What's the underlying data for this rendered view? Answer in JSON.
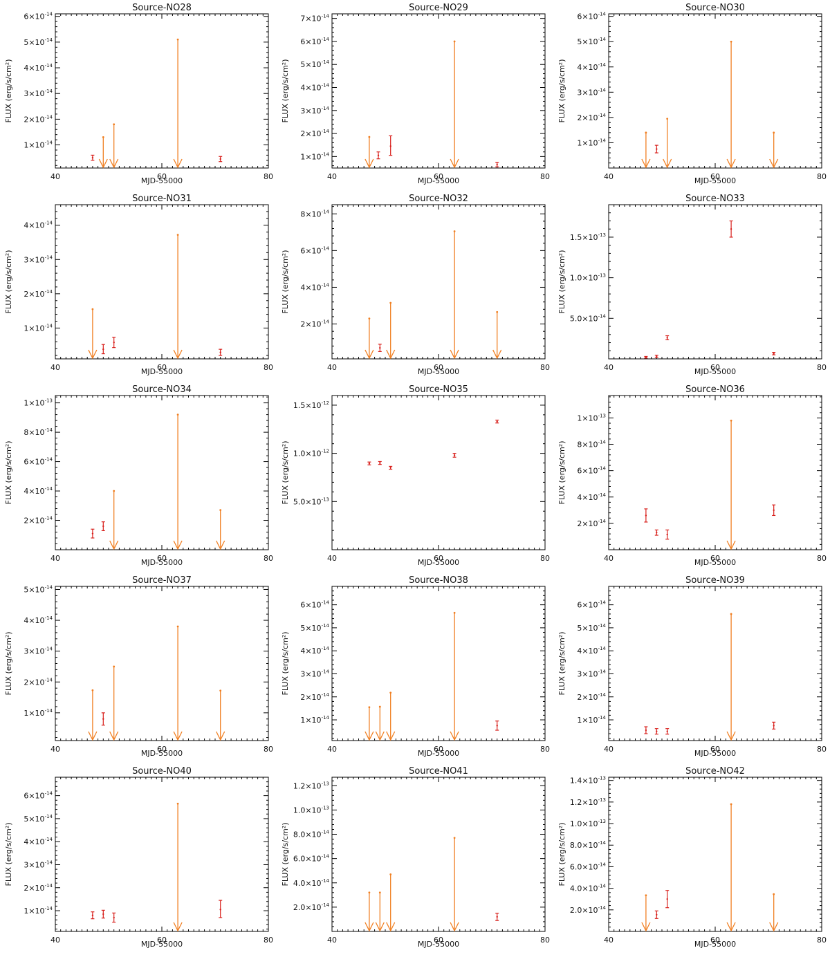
{
  "colors": {
    "upper_limit": "#f07f22",
    "detection": "#d8201c",
    "axes": "#000000"
  },
  "chart_data": [
    {
      "type": "scatter",
      "title": "Source-NO28",
      "xlabel": "MJD-55000",
      "ylabel": "FLUX (erg/s/cm²)",
      "xlim": [
        40,
        80
      ],
      "ylim": [
        1e-15,
        6.1e-14
      ],
      "yticks": [
        1e-14,
        2e-14,
        3e-14,
        4e-14,
        5e-14,
        6e-14
      ],
      "ytick_labels": [
        [
          "1",
          "-14"
        ],
        [
          "2",
          "-14"
        ],
        [
          "3",
          "-14"
        ],
        [
          "4",
          "-14"
        ],
        [
          "5",
          "-14"
        ],
        [
          "6",
          "-14"
        ]
      ],
      "upper_limits": [
        {
          "x": 49,
          "y": 1.3e-14
        },
        {
          "x": 51,
          "y": 1.8e-14
        },
        {
          "x": 63,
          "y": 5.1e-14
        }
      ],
      "detections": [
        {
          "x": 47,
          "y": 5e-15,
          "lo": 4e-15,
          "hi": 6e-15
        },
        {
          "x": 71,
          "y": 4.5e-15,
          "lo": 3.5e-15,
          "hi": 5.5e-15
        }
      ]
    },
    {
      "type": "scatter",
      "title": "Source-NO29",
      "xlabel": "MJD-55000",
      "ylabel": "FLUX (erg/s/cm²)",
      "xlim": [
        40,
        80
      ],
      "ylim": [
        5e-15,
        7.2e-14
      ],
      "yticks": [
        1e-14,
        2e-14,
        3e-14,
        4e-14,
        5e-14,
        6e-14,
        7e-14
      ],
      "ytick_labels": [
        [
          "1",
          "-14"
        ],
        [
          "2",
          "-14"
        ],
        [
          "3",
          "-14"
        ],
        [
          "4",
          "-14"
        ],
        [
          "5",
          "-14"
        ],
        [
          "6",
          "-14"
        ],
        [
          "7",
          "-14"
        ]
      ],
      "upper_limits": [
        {
          "x": 47,
          "y": 1.85e-14
        },
        {
          "x": 63,
          "y": 6e-14
        }
      ],
      "detections": [
        {
          "x": 48.7,
          "y": 1.05e-14,
          "lo": 9e-15,
          "hi": 1.2e-14
        },
        {
          "x": 51,
          "y": 1.45e-14,
          "lo": 1.05e-14,
          "hi": 1.9e-14
        },
        {
          "x": 71,
          "y": 6.5e-15,
          "lo": 5.5e-15,
          "hi": 7.5e-15
        }
      ]
    },
    {
      "type": "scatter",
      "title": "Source-NO30",
      "xlabel": "MJD-55000",
      "ylabel": "FLUX (erg/s/cm²)",
      "xlim": [
        40,
        80
      ],
      "ylim": [
        0,
        6.1e-14
      ],
      "yticks": [
        1e-14,
        2e-14,
        3e-14,
        4e-14,
        5e-14,
        6e-14
      ],
      "ytick_labels": [
        [
          "1",
          "-14"
        ],
        [
          "2",
          "-14"
        ],
        [
          "3",
          "-14"
        ],
        [
          "4",
          "-14"
        ],
        [
          "5",
          "-14"
        ],
        [
          "6",
          "-14"
        ]
      ],
      "upper_limits": [
        {
          "x": 47,
          "y": 1.4e-14
        },
        {
          "x": 51,
          "y": 1.95e-14
        },
        {
          "x": 63,
          "y": 5e-14
        },
        {
          "x": 71,
          "y": 1.4e-14
        }
      ],
      "detections": [
        {
          "x": 49,
          "y": 7.5e-15,
          "lo": 6e-15,
          "hi": 9e-15
        }
      ]
    },
    {
      "type": "scatter",
      "title": "Source-NO31",
      "xlabel": "MJD-55000",
      "ylabel": "FLUX (erg/s/cm²)",
      "xlim": [
        40,
        80
      ],
      "ylim": [
        1e-15,
        4.6e-14
      ],
      "yticks": [
        1e-14,
        2e-14,
        3e-14,
        4e-14
      ],
      "ytick_labels": [
        [
          "1",
          "-14"
        ],
        [
          "2",
          "-14"
        ],
        [
          "3",
          "-14"
        ],
        [
          "4",
          "-14"
        ]
      ],
      "upper_limits": [
        {
          "x": 47,
          "y": 1.55e-14
        },
        {
          "x": 63,
          "y": 3.72e-14
        }
      ],
      "detections": [
        {
          "x": 49,
          "y": 3.8e-15,
          "lo": 2.5e-15,
          "hi": 5.2e-15
        },
        {
          "x": 51,
          "y": 5.8e-15,
          "lo": 4.3e-15,
          "hi": 7.3e-15
        },
        {
          "x": 71,
          "y": 2.9e-15,
          "lo": 2e-15,
          "hi": 3.8e-15
        }
      ]
    },
    {
      "type": "scatter",
      "title": "Source-NO32",
      "xlabel": "MJD-55000",
      "ylabel": "FLUX (erg/s/cm²)",
      "xlim": [
        40,
        80
      ],
      "ylim": [
        1e-15,
        8.5e-14
      ],
      "yticks": [
        2e-14,
        4e-14,
        6e-14,
        8e-14
      ],
      "ytick_labels": [
        [
          "2",
          "-14"
        ],
        [
          "4",
          "-14"
        ],
        [
          "6",
          "-14"
        ],
        [
          "8",
          "-14"
        ]
      ],
      "upper_limits": [
        {
          "x": 47,
          "y": 2.3e-14
        },
        {
          "x": 51,
          "y": 3.15e-14
        },
        {
          "x": 63,
          "y": 7.05e-14
        },
        {
          "x": 71,
          "y": 2.65e-14
        }
      ],
      "detections": [
        {
          "x": 49,
          "y": 7e-15,
          "lo": 5e-15,
          "hi": 9e-15
        }
      ]
    },
    {
      "type": "scatter",
      "title": "Source-NO33",
      "xlabel": "MJD-55000",
      "ylabel": "FLUX (erg/s/cm²)",
      "xlim": [
        40,
        80
      ],
      "ylim": [
        0,
        1.9e-13
      ],
      "yticks": [
        5e-14,
        1e-13,
        1.5e-13
      ],
      "ytick_labels": [
        [
          "5.0",
          "-14"
        ],
        [
          "1.0",
          "-13"
        ],
        [
          "1.5",
          "-13"
        ]
      ],
      "upper_limits": [],
      "detections": [
        {
          "x": 47,
          "y": 2e-15,
          "lo": 1e-15,
          "hi": 3e-15
        },
        {
          "x": 49,
          "y": 3e-15,
          "lo": 1.5e-15,
          "hi": 4.5e-15
        },
        {
          "x": 51,
          "y": 2.6e-14,
          "lo": 2.35e-14,
          "hi": 2.85e-14
        },
        {
          "x": 63,
          "y": 1.6e-13,
          "lo": 1.5e-13,
          "hi": 1.7e-13
        },
        {
          "x": 71,
          "y": 6.5e-15,
          "lo": 5e-15,
          "hi": 8e-15
        }
      ]
    },
    {
      "type": "scatter",
      "title": "Source-NO34",
      "xlabel": "MJD-55000",
      "ylabel": "FLUX (erg/s/cm²)",
      "xlim": [
        40,
        80
      ],
      "ylim": [
        0,
        1.05e-13
      ],
      "yticks": [
        2e-14,
        4e-14,
        6e-14,
        8e-14,
        1e-13
      ],
      "ytick_labels": [
        [
          "2",
          "-14"
        ],
        [
          "4",
          "-14"
        ],
        [
          "6",
          "-14"
        ],
        [
          "8",
          "-14"
        ],
        [
          "1",
          "-13"
        ]
      ],
      "upper_limits": [
        {
          "x": 51,
          "y": 4e-14
        },
        {
          "x": 63,
          "y": 9.2e-14
        },
        {
          "x": 71,
          "y": 2.7e-14
        }
      ],
      "detections": [
        {
          "x": 47,
          "y": 1.1e-14,
          "lo": 8e-15,
          "hi": 1.4e-14
        },
        {
          "x": 49,
          "y": 1.6e-14,
          "lo": 1.3e-14,
          "hi": 1.9e-14
        }
      ]
    },
    {
      "type": "scatter",
      "title": "Source-NO35",
      "xlabel": "MJD-55000",
      "ylabel": "FLUX (erg/s/cm²)",
      "xlim": [
        40,
        80
      ],
      "ylim": [
        0,
        1.6e-12
      ],
      "yticks": [
        5e-13,
        1e-12,
        1.5e-12
      ],
      "ytick_labels": [
        [
          "5.0",
          "-13"
        ],
        [
          "1.0",
          "-12"
        ],
        [
          "1.5",
          "-12"
        ]
      ],
      "upper_limits": [],
      "detections": [
        {
          "x": 47,
          "y": 8.95e-13,
          "lo": 8.8e-13,
          "hi": 9.1e-13
        },
        {
          "x": 49,
          "y": 9e-13,
          "lo": 8.85e-13,
          "hi": 9.15e-13
        },
        {
          "x": 51,
          "y": 8.5e-13,
          "lo": 8.35e-13,
          "hi": 8.65e-13
        },
        {
          "x": 63,
          "y": 9.8e-13,
          "lo": 9.6e-13,
          "hi": 1e-12
        },
        {
          "x": 71,
          "y": 1.33e-12,
          "lo": 1.315e-12,
          "hi": 1.345e-12
        }
      ]
    },
    {
      "type": "scatter",
      "title": "Source-NO36",
      "xlabel": "MJD-55000",
      "ylabel": "FLUX (erg/s/cm²)",
      "xlim": [
        40,
        80
      ],
      "ylim": [
        0,
        1.17e-13
      ],
      "yticks": [
        2e-14,
        4e-14,
        6e-14,
        8e-14,
        1e-13
      ],
      "ytick_labels": [
        [
          "2",
          "-14"
        ],
        [
          "4",
          "-14"
        ],
        [
          "6",
          "-14"
        ],
        [
          "8",
          "-14"
        ],
        [
          "1",
          "-13"
        ]
      ],
      "upper_limits": [
        {
          "x": 63,
          "y": 9.8e-14
        }
      ],
      "detections": [
        {
          "x": 47,
          "y": 2.6e-14,
          "lo": 2.1e-14,
          "hi": 3.1e-14
        },
        {
          "x": 49,
          "y": 1.3e-14,
          "lo": 1.1e-14,
          "hi": 1.5e-14
        },
        {
          "x": 51,
          "y": 1.15e-14,
          "lo": 8e-15,
          "hi": 1.5e-14
        },
        {
          "x": 71,
          "y": 3e-14,
          "lo": 2.6e-14,
          "hi": 3.4e-14
        }
      ]
    },
    {
      "type": "scatter",
      "title": "Source-NO37",
      "xlabel": "MJD-55000",
      "ylabel": "FLUX (erg/s/cm²)",
      "xlim": [
        40,
        80
      ],
      "ylim": [
        1e-15,
        5.1e-14
      ],
      "yticks": [
        1e-14,
        2e-14,
        3e-14,
        4e-14,
        5e-14
      ],
      "ytick_labels": [
        [
          "1",
          "-14"
        ],
        [
          "2",
          "-14"
        ],
        [
          "3",
          "-14"
        ],
        [
          "4",
          "-14"
        ],
        [
          "5",
          "-14"
        ]
      ],
      "upper_limits": [
        {
          "x": 47,
          "y": 1.73e-14
        },
        {
          "x": 51,
          "y": 2.5e-14
        },
        {
          "x": 63,
          "y": 3.8e-14
        },
        {
          "x": 71,
          "y": 1.72e-14
        }
      ],
      "detections": [
        {
          "x": 49,
          "y": 8e-15,
          "lo": 6e-15,
          "hi": 1e-14
        }
      ]
    },
    {
      "type": "scatter",
      "title": "Source-NO38",
      "xlabel": "MJD-55000",
      "ylabel": "FLUX (erg/s/cm²)",
      "xlim": [
        40,
        80
      ],
      "ylim": [
        1e-15,
        6.8e-14
      ],
      "yticks": [
        1e-14,
        2e-14,
        3e-14,
        4e-14,
        5e-14,
        6e-14
      ],
      "ytick_labels": [
        [
          "1",
          "-14"
        ],
        [
          "2",
          "-14"
        ],
        [
          "3",
          "-14"
        ],
        [
          "4",
          "-14"
        ],
        [
          "5",
          "-14"
        ],
        [
          "6",
          "-14"
        ]
      ],
      "upper_limits": [
        {
          "x": 47,
          "y": 1.55e-14
        },
        {
          "x": 49,
          "y": 1.57e-14
        },
        {
          "x": 51,
          "y": 2.18e-14
        },
        {
          "x": 63,
          "y": 5.65e-14
        }
      ],
      "detections": [
        {
          "x": 71,
          "y": 7.5e-15,
          "lo": 5.5e-15,
          "hi": 9.5e-15
        }
      ]
    },
    {
      "type": "scatter",
      "title": "Source-NO39",
      "xlabel": "MJD-55000",
      "ylabel": "FLUX (erg/s/cm²)",
      "xlim": [
        40,
        80
      ],
      "ylim": [
        1e-15,
        6.8e-14
      ],
      "yticks": [
        1e-14,
        2e-14,
        3e-14,
        4e-14,
        5e-14,
        6e-14
      ],
      "ytick_labels": [
        [
          "1",
          "-14"
        ],
        [
          "2",
          "-14"
        ],
        [
          "3",
          "-14"
        ],
        [
          "4",
          "-14"
        ],
        [
          "5",
          "-14"
        ],
        [
          "6",
          "-14"
        ]
      ],
      "upper_limits": [
        {
          "x": 63,
          "y": 5.6e-14
        }
      ],
      "detections": [
        {
          "x": 47,
          "y": 5.5e-15,
          "lo": 4e-15,
          "hi": 7e-15
        },
        {
          "x": 49,
          "y": 5e-15,
          "lo": 3.8e-15,
          "hi": 6.2e-15
        },
        {
          "x": 51,
          "y": 5e-15,
          "lo": 3.8e-15,
          "hi": 6.2e-15
        },
        {
          "x": 71,
          "y": 7.5e-15,
          "lo": 6e-15,
          "hi": 9e-15
        }
      ]
    },
    {
      "type": "scatter",
      "title": "Source-NO40",
      "xlabel": "MJD-55000",
      "ylabel": "FLUX (erg/s/cm²)",
      "xlim": [
        40,
        80
      ],
      "ylim": [
        1e-15,
        6.8e-14
      ],
      "yticks": [
        1e-14,
        2e-14,
        3e-14,
        4e-14,
        5e-14,
        6e-14
      ],
      "ytick_labels": [
        [
          "1",
          "-14"
        ],
        [
          "2",
          "-14"
        ],
        [
          "3",
          "-14"
        ],
        [
          "4",
          "-14"
        ],
        [
          "5",
          "-14"
        ],
        [
          "6",
          "-14"
        ]
      ],
      "upper_limits": [
        {
          "x": 63,
          "y": 5.65e-14
        }
      ],
      "detections": [
        {
          "x": 47,
          "y": 8e-15,
          "lo": 6.5e-15,
          "hi": 9.5e-15
        },
        {
          "x": 49,
          "y": 8.5e-15,
          "lo": 6.8e-15,
          "hi": 1.02e-14
        },
        {
          "x": 51,
          "y": 7e-15,
          "lo": 5e-15,
          "hi": 9e-15
        },
        {
          "x": 71,
          "y": 1.05e-14,
          "lo": 7e-15,
          "hi": 1.45e-14
        }
      ]
    },
    {
      "type": "scatter",
      "title": "Source-NO41",
      "xlabel": "MJD-55000",
      "ylabel": "FLUX (erg/s/cm²)",
      "xlim": [
        40,
        80
      ],
      "ylim": [
        0,
        1.27e-13
      ],
      "yticks": [
        2e-14,
        4e-14,
        6e-14,
        8e-14,
        1e-13,
        1.2e-13
      ],
      "ytick_labels": [
        [
          "2.0",
          "-14"
        ],
        [
          "4.0",
          "-14"
        ],
        [
          "6.0",
          "-14"
        ],
        [
          "8.0",
          "-14"
        ],
        [
          "1.0",
          "-13"
        ],
        [
          "1.2",
          "-13"
        ]
      ],
      "upper_limits": [
        {
          "x": 47,
          "y": 3.2e-14
        },
        {
          "x": 49,
          "y": 3.2e-14
        },
        {
          "x": 51,
          "y": 4.7e-14
        },
        {
          "x": 63,
          "y": 7.7e-14
        }
      ],
      "detections": [
        {
          "x": 71,
          "y": 1.2e-14,
          "lo": 9e-15,
          "hi": 1.5e-14
        }
      ]
    },
    {
      "type": "scatter",
      "title": "Source-NO42",
      "xlabel": "MJD-55000",
      "ylabel": "FLUX (erg/s/cm²)",
      "xlim": [
        40,
        80
      ],
      "ylim": [
        0,
        1.43e-13
      ],
      "yticks": [
        2e-14,
        4e-14,
        6e-14,
        8e-14,
        1e-13,
        1.2e-13,
        1.4e-13
      ],
      "ytick_labels": [
        [
          "2.0",
          "-14"
        ],
        [
          "4.0",
          "-14"
        ],
        [
          "6.0",
          "-14"
        ],
        [
          "8.0",
          "-14"
        ],
        [
          "1.0",
          "-13"
        ],
        [
          "1.2",
          "-13"
        ],
        [
          "1.4",
          "-13"
        ]
      ],
      "upper_limits": [
        {
          "x": 47,
          "y": 3.35e-14
        },
        {
          "x": 63,
          "y": 1.18e-13
        },
        {
          "x": 71,
          "y": 3.45e-14
        }
      ],
      "detections": [
        {
          "x": 49,
          "y": 1.55e-14,
          "lo": 1.2e-14,
          "hi": 1.9e-14
        },
        {
          "x": 51,
          "y": 3e-14,
          "lo": 2.2e-14,
          "hi": 3.8e-14
        }
      ]
    }
  ]
}
